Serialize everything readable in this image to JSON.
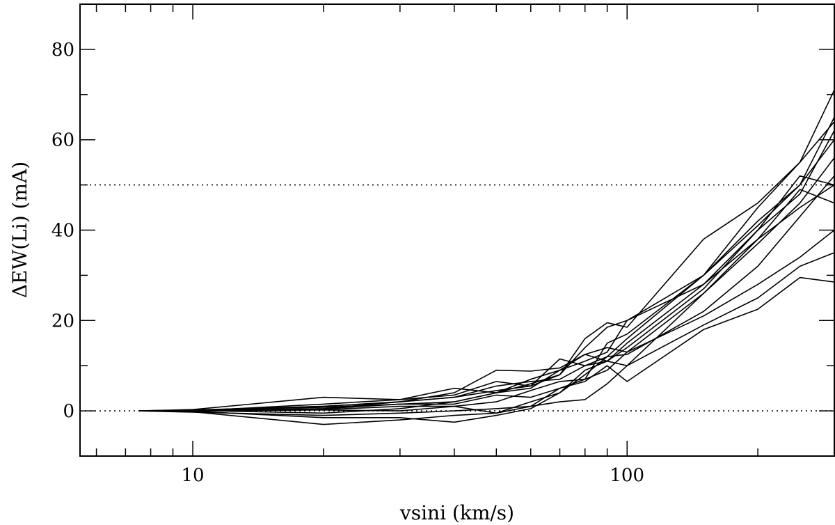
{
  "chart_data": {
    "type": "line",
    "title": "",
    "xlabel": "vsini (km/s)",
    "ylabel": "ΔEW(Li) (mA)",
    "x_scale": "log",
    "xlim": [
      5.5,
      300
    ],
    "ylim": [
      -10,
      90
    ],
    "x_ticks": [
      {
        "value": 10,
        "label": "10"
      },
      {
        "value": 100,
        "label": "100"
      }
    ],
    "y_ticks": [
      {
        "value": 0,
        "label": "0"
      },
      {
        "value": 20,
        "label": "20"
      },
      {
        "value": 40,
        "label": "40"
      },
      {
        "value": 60,
        "label": "60"
      },
      {
        "value": 80,
        "label": "80"
      }
    ],
    "reference_lines": [
      0,
      50
    ],
    "x": [
      7.5,
      10,
      20,
      30,
      40,
      50,
      60,
      70,
      80,
      90,
      100,
      150,
      200,
      250,
      300
    ],
    "series": [
      {
        "values": [
          0,
          0.2,
          1.0,
          2.0,
          3.0,
          5.5,
          6.5,
          7.0,
          10.0,
          12.0,
          16.0,
          30.0,
          42.0,
          50.0,
          65.0
        ]
      },
      {
        "values": [
          0,
          0.1,
          0.5,
          1.5,
          2.0,
          4.0,
          5.0,
          9.0,
          11.0,
          13.0,
          20.0,
          28.0,
          40.0,
          48.0,
          62.0
        ]
      },
      {
        "values": [
          0,
          -0.3,
          -1.0,
          -0.5,
          0.0,
          0.5,
          1.0,
          2.0,
          2.5,
          6.0,
          10.0,
          26.0,
          37.0,
          46.0,
          56.0
        ]
      },
      {
        "values": [
          0,
          -0.2,
          -3.0,
          -2.0,
          -1.0,
          -0.5,
          2.0,
          4.0,
          8.0,
          12.0,
          12.5,
          22.0,
          32.0,
          43.0,
          52.0
        ]
      },
      {
        "values": [
          0,
          0.3,
          3.0,
          2.5,
          5.0,
          4.0,
          6.0,
          8.0,
          14.0,
          18.5,
          20.0,
          30.0,
          45.0,
          55.0,
          71.0
        ]
      },
      {
        "values": [
          0,
          0.1,
          0.3,
          1.0,
          1.0,
          2.0,
          4.5,
          6.5,
          7.0,
          9.0,
          13.0,
          26.0,
          38.0,
          49.0,
          46.0
        ]
      },
      {
        "values": [
          0,
          -0.1,
          -1.5,
          -1.5,
          -2.5,
          -1.0,
          0.5,
          4.0,
          9.0,
          11.0,
          14.0,
          27.0,
          40.0,
          52.0,
          50.0
        ]
      },
      {
        "values": [
          0,
          0.1,
          1.0,
          2.0,
          4.0,
          9.0,
          8.8,
          9.5,
          12.5,
          14.0,
          13.0,
          21.0,
          28.0,
          34.0,
          40.0
        ]
      },
      {
        "values": [
          0,
          0.0,
          1.5,
          2.5,
          3.5,
          6.5,
          5.5,
          8.0,
          16.0,
          19.5,
          18.5,
          38.0,
          46.0,
          55.0,
          64.0
        ]
      },
      {
        "values": [
          0,
          0.2,
          0.8,
          1.5,
          1.5,
          3.5,
          3.0,
          5.0,
          6.5,
          10.0,
          6.5,
          18.0,
          22.5,
          29.5,
          28.5
        ]
      },
      {
        "values": [
          0,
          -0.1,
          0.5,
          2.0,
          3.0,
          4.5,
          5.5,
          11.5,
          10.0,
          11.0,
          10.0,
          19.0,
          25.0,
          32.0,
          35.0
        ]
      },
      {
        "values": [
          0,
          0.0,
          0.2,
          0.0,
          1.0,
          -0.5,
          1.0,
          5.0,
          7.0,
          15.0,
          17.0,
          30.0,
          41.0,
          50.0,
          60.0
        ]
      },
      {
        "values": [
          0,
          0.1,
          -0.5,
          0.5,
          2.0,
          4.0,
          7.0,
          9.0,
          12.5,
          11.0,
          15.0,
          28.0,
          38.0,
          45.0,
          50.0
        ]
      }
    ]
  }
}
